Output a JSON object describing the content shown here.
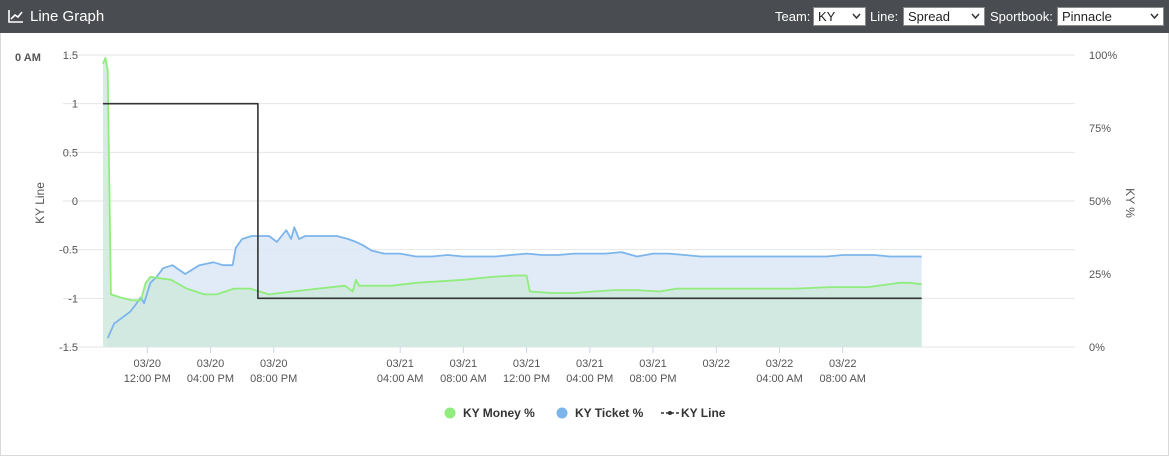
{
  "header": {
    "title": "Line Graph",
    "team_label": "Team:",
    "team_value": "KY",
    "line_label": "Line:",
    "line_value": "Spread",
    "sportbook_label": "Sportbook:",
    "sportbook_value": "Pinnacle"
  },
  "chart_data": {
    "type": "line",
    "corner_label": "0 AM",
    "left_axis": {
      "label": "KY Line",
      "ticks": [
        "1.5",
        "1",
        "0.5",
        "0",
        "-0.5",
        "-1",
        "-1.5"
      ],
      "ylim": [
        -1.5,
        1.5
      ]
    },
    "right_axis": {
      "label": "KY %",
      "ticks": [
        "100%",
        "75%",
        "50%",
        "25%",
        "0%"
      ],
      "ylim": [
        0,
        100
      ]
    },
    "x_ticks": [
      {
        "date": "03/20",
        "time": "12:00 PM"
      },
      {
        "date": "03/20",
        "time": "04:00 PM"
      },
      {
        "date": "03/20",
        "time": "08:00 PM"
      },
      {
        "date": "03/21",
        "time": "04:00 AM"
      },
      {
        "date": "03/21",
        "time": "08:00 AM"
      },
      {
        "date": "03/21",
        "time": "12:00 PM"
      },
      {
        "date": "03/21",
        "time": "04:00 PM"
      },
      {
        "date": "03/21",
        "time": "08:00 PM"
      },
      {
        "date": "03/22",
        "time": ""
      },
      {
        "date": "03/22",
        "time": "04:00 AM"
      },
      {
        "date": "03/22",
        "time": "08:00 AM"
      }
    ],
    "x_tick_hours": [
      12,
      16,
      20,
      28,
      32,
      36,
      40,
      44,
      48,
      52,
      56
    ],
    "x_range_hours": [
      9.2,
      70
    ],
    "series": [
      {
        "name": "KY Money %",
        "color": "#90ed7d",
        "fill": "#cfe9dd",
        "axis": "right",
        "points": [
          [
            9.2,
            97
          ],
          [
            9.35,
            99
          ],
          [
            9.5,
            95
          ],
          [
            9.7,
            18
          ],
          [
            10.3,
            17
          ],
          [
            11.0,
            16
          ],
          [
            11.6,
            16
          ],
          [
            11.9,
            22
          ],
          [
            12.2,
            24
          ],
          [
            13.5,
            23
          ],
          [
            14.5,
            20
          ],
          [
            15.6,
            18
          ],
          [
            16.4,
            18
          ],
          [
            17.5,
            20
          ],
          [
            18.5,
            20
          ],
          [
            19.7,
            18
          ],
          [
            21.2,
            19
          ],
          [
            22.8,
            20
          ],
          [
            24.5,
            21
          ],
          [
            25.0,
            19
          ],
          [
            25.2,
            23
          ],
          [
            25.4,
            21
          ],
          [
            26.3,
            21
          ],
          [
            27.5,
            21
          ],
          [
            29.0,
            22
          ],
          [
            30.5,
            22.5
          ],
          [
            32.0,
            23
          ],
          [
            33.8,
            24
          ],
          [
            35.3,
            24.5
          ],
          [
            36.0,
            24.5
          ],
          [
            36.2,
            19
          ],
          [
            37.6,
            18.5
          ],
          [
            39.0,
            18.5
          ],
          [
            40.2,
            19
          ],
          [
            41.5,
            19.5
          ],
          [
            43.0,
            19.5
          ],
          [
            44.4,
            19
          ],
          [
            45.5,
            20
          ],
          [
            47.3,
            20
          ],
          [
            49.1,
            20
          ],
          [
            51.0,
            20
          ],
          [
            53.0,
            20
          ],
          [
            55.2,
            20.5
          ],
          [
            57.6,
            20.5
          ],
          [
            59.6,
            22
          ],
          [
            60.2,
            22
          ],
          [
            61.0,
            21.5
          ]
        ]
      },
      {
        "name": "KY Ticket %",
        "color": "#7cb5ec",
        "fill": "#dbe8f6",
        "axis": "right",
        "points": [
          [
            9.5,
            3
          ],
          [
            9.9,
            8
          ],
          [
            10.4,
            10
          ],
          [
            10.9,
            12
          ],
          [
            11.2,
            14
          ],
          [
            11.6,
            17
          ],
          [
            11.8,
            15
          ],
          [
            12.2,
            22
          ],
          [
            12.6,
            24
          ],
          [
            13.0,
            27
          ],
          [
            13.6,
            28
          ],
          [
            14.4,
            25
          ],
          [
            15.3,
            28
          ],
          [
            16.2,
            29
          ],
          [
            16.8,
            28
          ],
          [
            17.4,
            28
          ],
          [
            17.6,
            34
          ],
          [
            18.0,
            37
          ],
          [
            18.6,
            38
          ],
          [
            19.7,
            38
          ],
          [
            20.2,
            36
          ],
          [
            20.5,
            38
          ],
          [
            20.8,
            40
          ],
          [
            21.1,
            37
          ],
          [
            21.3,
            41
          ],
          [
            21.6,
            37
          ],
          [
            22.0,
            38
          ],
          [
            22.5,
            38
          ],
          [
            23.0,
            38
          ],
          [
            23.5,
            38
          ],
          [
            24.0,
            38
          ],
          [
            24.7,
            37
          ],
          [
            25.2,
            36
          ],
          [
            25.6,
            35
          ],
          [
            26.2,
            33
          ],
          [
            27.0,
            32
          ],
          [
            28.0,
            32
          ],
          [
            29.0,
            31
          ],
          [
            30.0,
            31
          ],
          [
            31.0,
            31.5
          ],
          [
            32.0,
            31
          ],
          [
            33.0,
            31
          ],
          [
            34.0,
            31
          ],
          [
            35.0,
            31.5
          ],
          [
            36.0,
            32
          ],
          [
            37.0,
            31.5
          ],
          [
            38.0,
            31.5
          ],
          [
            39.0,
            32
          ],
          [
            40.0,
            32
          ],
          [
            41.0,
            32
          ],
          [
            42.0,
            32.5
          ],
          [
            43.0,
            31
          ],
          [
            44.0,
            32
          ],
          [
            45.0,
            32
          ],
          [
            46.0,
            31.5
          ],
          [
            47.0,
            31
          ],
          [
            48.0,
            31
          ],
          [
            49.0,
            31
          ],
          [
            50.0,
            31
          ],
          [
            51.0,
            31
          ],
          [
            52.0,
            31
          ],
          [
            53.0,
            31
          ],
          [
            54.0,
            31
          ],
          [
            55.0,
            31
          ],
          [
            56.0,
            31.5
          ],
          [
            57.0,
            31.5
          ],
          [
            58.0,
            31.5
          ],
          [
            59.0,
            31
          ],
          [
            60.0,
            31
          ],
          [
            61.0,
            31
          ]
        ]
      },
      {
        "name": "KY Line",
        "color": "#333333",
        "axis": "left",
        "step": true,
        "points": [
          [
            9.2,
            1
          ],
          [
            19.0,
            1
          ],
          [
            19.0,
            -1
          ],
          [
            61.0,
            -1
          ]
        ]
      }
    ],
    "legend": {
      "placement": "bottom-center",
      "items": [
        "KY Money %",
        "KY Ticket %",
        "KY Line"
      ]
    },
    "grid": true
  }
}
